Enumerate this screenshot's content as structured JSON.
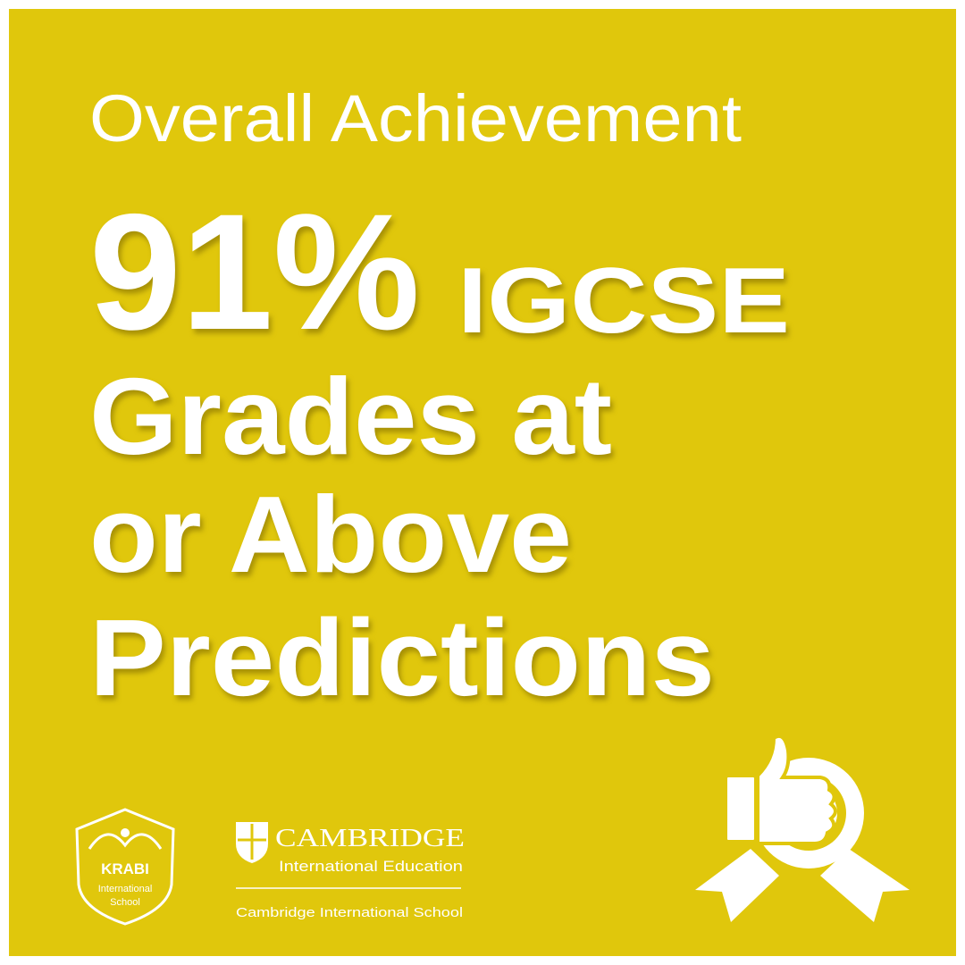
{
  "header": {
    "title": "Overall Achievement"
  },
  "headline": {
    "figure": "91%",
    "qualification": "IGCSE",
    "lines": [
      "Grades at",
      "or Above",
      "Predictions"
    ]
  },
  "footer": {
    "school_logo": {
      "name": "KRABI",
      "line2": "International",
      "line3": "School"
    },
    "cambridge_logo": {
      "name": "CAMBRIDGE",
      "subtitle": "International Education",
      "caption": "Cambridge International School"
    }
  }
}
